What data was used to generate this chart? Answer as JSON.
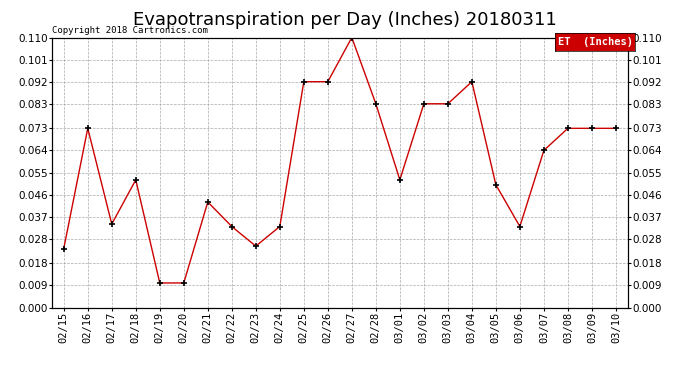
{
  "title": "Evapotranspiration per Day (Inches) 20180311",
  "copyright": "Copyright 2018 Cartronics.com",
  "legend_label": "ET  (Inches)",
  "legend_bg": "#cc0000",
  "legend_fg": "#ffffff",
  "dates": [
    "02/15",
    "02/16",
    "02/17",
    "02/18",
    "02/19",
    "02/20",
    "02/21",
    "02/22",
    "02/23",
    "02/24",
    "02/25",
    "02/26",
    "02/27",
    "02/28",
    "03/01",
    "03/02",
    "03/03",
    "03/04",
    "03/05",
    "03/06",
    "03/07",
    "03/08",
    "03/09",
    "03/10"
  ],
  "values": [
    0.024,
    0.073,
    0.034,
    0.052,
    0.01,
    0.01,
    0.043,
    0.033,
    0.025,
    0.033,
    0.092,
    0.092,
    0.11,
    0.083,
    0.052,
    0.083,
    0.083,
    0.092,
    0.05,
    0.033,
    0.064,
    0.073,
    0.073,
    0.073
  ],
  "line_color": "#cc0000",
  "marker": "+",
  "marker_color": "#000000",
  "ylim": [
    0.0,
    0.11
  ],
  "yticks": [
    0.0,
    0.009,
    0.018,
    0.028,
    0.037,
    0.046,
    0.055,
    0.064,
    0.073,
    0.083,
    0.092,
    0.101,
    0.11
  ],
  "background_color": "#ffffff",
  "grid_color": "#aaaaaa",
  "title_fontsize": 13,
  "copyright_fontsize": 6.5,
  "tick_fontsize": 7.5,
  "legend_fontsize": 7.5,
  "fig_width": 6.9,
  "fig_height": 3.75,
  "dpi": 100
}
